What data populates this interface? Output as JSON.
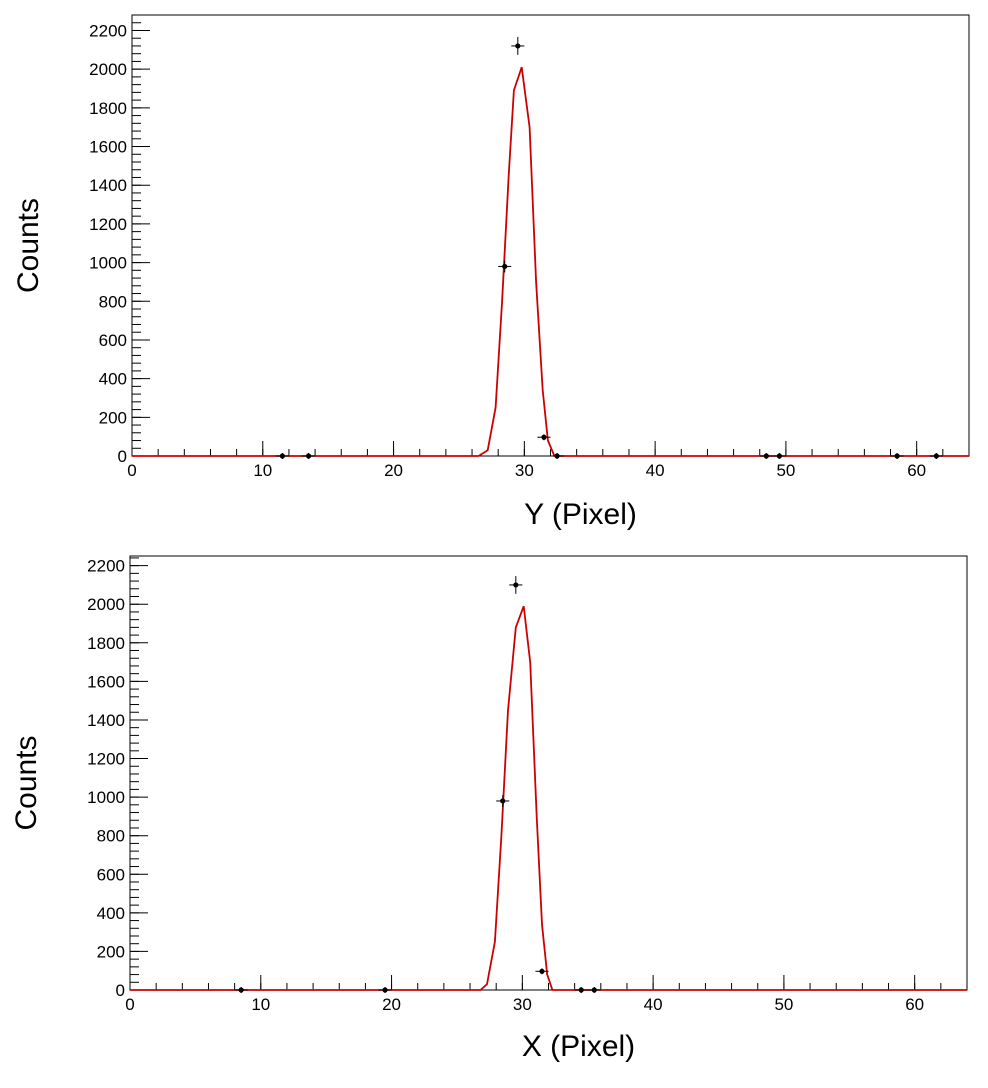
{
  "chart_data": [
    {
      "type": "scatter",
      "title": "",
      "xlabel": "Y (Pixel)",
      "ylabel": "Counts",
      "xlim": [
        0,
        64
      ],
      "ylim": [
        0,
        2280
      ],
      "x_ticks": [
        "0",
        "10",
        "20",
        "30",
        "40",
        "50",
        "60"
      ],
      "y_ticks": [
        "0",
        "200",
        "400",
        "600",
        "800",
        "1000",
        "1200",
        "1400",
        "1600",
        "1800",
        "2000",
        "2200"
      ],
      "grid": false,
      "legend": "none",
      "series": [
        {
          "kind": "points",
          "color": "#000000",
          "x": [
            11.5,
            13.5,
            28.5,
            29.5,
            31.5,
            32.5,
            48.5,
            49.5,
            58.5,
            61.5
          ],
          "y": [
            0,
            0,
            980,
            2120,
            97,
            0,
            0,
            0,
            0,
            0
          ],
          "yerr": [
            2,
            2,
            31,
            46,
            10,
            2,
            2,
            2,
            2,
            2
          ]
        },
        {
          "kind": "fit",
          "color": "#cc0000",
          "x": [
            0,
            26.5,
            27.2,
            27.8,
            28.3,
            28.8,
            29.2,
            29.8,
            30.4,
            30.9,
            31.4,
            31.8,
            32.3,
            64
          ],
          "y": [
            0,
            0,
            30,
            250,
            800,
            1450,
            1890,
            2010,
            1700,
            900,
            340,
            80,
            0,
            0
          ]
        }
      ]
    },
    {
      "type": "scatter",
      "title": "",
      "xlabel": "X (Pixel)",
      "ylabel": "Counts",
      "xlim": [
        0,
        64
      ],
      "ylim": [
        0,
        2250
      ],
      "x_ticks": [
        "0",
        "10",
        "20",
        "30",
        "40",
        "50",
        "60"
      ],
      "y_ticks": [
        "0",
        "200",
        "400",
        "600",
        "800",
        "1000",
        "1200",
        "1400",
        "1600",
        "1800",
        "2000",
        "2200"
      ],
      "grid": false,
      "legend": "none",
      "series": [
        {
          "kind": "points",
          "color": "#000000",
          "x": [
            8.5,
            19.5,
            28.5,
            29.5,
            31.5,
            34.5,
            35.5
          ],
          "y": [
            0,
            0,
            980,
            2100,
            97,
            0,
            0
          ],
          "yerr": [
            2,
            2,
            31,
            46,
            10,
            2,
            2
          ]
        },
        {
          "kind": "fit",
          "color": "#cc0000",
          "x": [
            0,
            26.8,
            27.3,
            27.9,
            28.4,
            28.9,
            29.5,
            30.1,
            30.6,
            31.1,
            31.5,
            31.9,
            32.3,
            64
          ],
          "y": [
            0,
            0,
            30,
            250,
            800,
            1450,
            1880,
            1990,
            1700,
            900,
            340,
            80,
            0,
            0
          ]
        }
      ]
    }
  ]
}
